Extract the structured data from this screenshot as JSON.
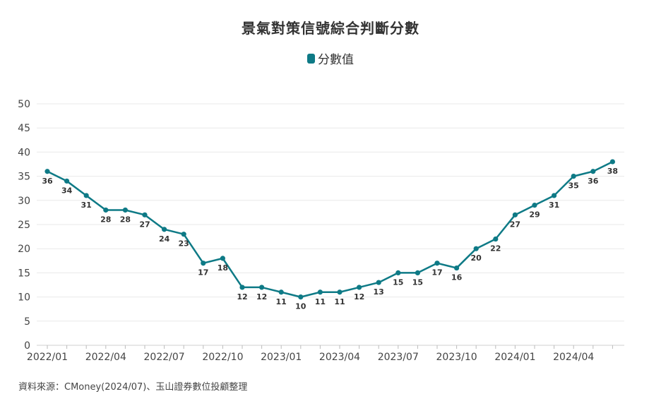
{
  "chart_data": {
    "type": "line",
    "title": "景氣對策信號綜合判斷分數",
    "legend": [
      "分數值"
    ],
    "legend_position": "top-center",
    "line_color": "#0e7a86",
    "grid": true,
    "ylim": [
      0,
      50
    ],
    "yticks": [
      0,
      5,
      10,
      15,
      20,
      25,
      30,
      35,
      40,
      45,
      50
    ],
    "xtick_labels": [
      "2022/01",
      "2022/04",
      "2022/07",
      "2022/10",
      "2023/01",
      "2023/04",
      "2023/07",
      "2023/10",
      "2024/01",
      "2024/04"
    ],
    "x": [
      "2022/01",
      "2022/02",
      "2022/03",
      "2022/04",
      "2022/05",
      "2022/06",
      "2022/07",
      "2022/08",
      "2022/09",
      "2022/10",
      "2022/11",
      "2022/12",
      "2023/01",
      "2023/02",
      "2023/03",
      "2023/04",
      "2023/05",
      "2023/06",
      "2023/07",
      "2023/08",
      "2023/09",
      "2023/10",
      "2023/11",
      "2023/12",
      "2024/01",
      "2024/02",
      "2024/03",
      "2024/04",
      "2024/05",
      "2024/06"
    ],
    "series": [
      {
        "name": "分數值",
        "values": [
          36,
          34,
          31,
          28,
          28,
          27,
          24,
          23,
          17,
          18,
          12,
          12,
          11,
          10,
          11,
          11,
          12,
          13,
          15,
          15,
          17,
          16,
          20,
          22,
          27,
          29,
          31,
          35,
          36,
          38
        ]
      }
    ]
  },
  "source_note": "資料來源：CMoney(2024/07)、玉山證券數位投顧整理"
}
